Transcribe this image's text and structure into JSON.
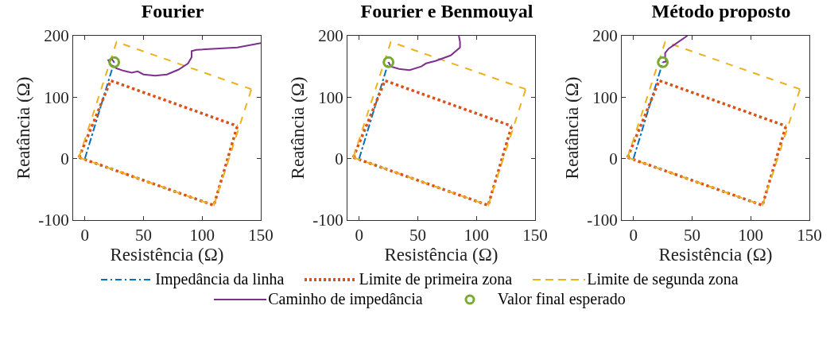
{
  "chart_data": [
    {
      "type": "line",
      "title": "Fourier",
      "xlabel": "Resistência (Ω)",
      "ylabel": "Reatância (Ω)",
      "xlim": [
        -10,
        150
      ],
      "xticks": [
        0,
        50,
        100,
        150
      ],
      "ylim": [
        -100,
        200
      ],
      "yticks": [
        -100,
        0,
        100,
        200
      ],
      "grid": false,
      "legend": "bottom",
      "series": [
        {
          "name": "Impedância da linha",
          "color": "#0072bd",
          "line_style": "dashdot",
          "x": [
            0,
            25
          ],
          "values": [
            0,
            157
          ]
        },
        {
          "name": "Limite de primeira zona",
          "color": "#d95319",
          "line_style": "dotted",
          "x": [
            -5,
            22,
            130,
            null,
            -5,
            110,
            130
          ],
          "values": [
            2,
            127,
            53,
            null,
            2,
            -76,
            53
          ]
        },
        {
          "name": "Limite de segunda zona",
          "color": "#edb120",
          "line_style": "dashed",
          "x": [
            -5,
            27,
            142,
            null,
            -5,
            110,
            142
          ],
          "values": [
            2,
            190,
            113,
            null,
            2,
            -76,
            113
          ]
        },
        {
          "name": "Caminho de impedância",
          "color": "#7e2f8e",
          "line_style": "solid",
          "x": [
            150,
            130,
            95,
            91,
            91,
            88,
            80,
            70,
            60,
            50,
            45,
            40,
            33,
            27,
            22,
            20,
            23,
            25
          ],
          "values": [
            188,
            181,
            177,
            175,
            165,
            155,
            145,
            137,
            135,
            137,
            142,
            140,
            143,
            147,
            153,
            160,
            162,
            157
          ]
        },
        {
          "name": "Valor final esperado",
          "type": "scatter",
          "marker": "circle",
          "color": "#77ac30",
          "x": [
            25
          ],
          "values": [
            157
          ]
        }
      ]
    },
    {
      "type": "line",
      "title": "Fourier e Benmouyal",
      "xlabel": "Resistência (Ω)",
      "ylabel": "Reatância (Ω)",
      "xlim": [
        -10,
        150
      ],
      "xticks": [
        0,
        50,
        100,
        150
      ],
      "ylim": [
        -100,
        200
      ],
      "yticks": [
        -100,
        0,
        100,
        200
      ],
      "grid": false,
      "series": [
        {
          "color": "#0072bd",
          "line_style": "dashdot",
          "x": [
            0,
            25
          ],
          "values": [
            0,
            157
          ]
        },
        {
          "color": "#d95319",
          "line_style": "dotted",
          "x": [
            -5,
            22,
            130,
            null,
            -5,
            110,
            130
          ],
          "values": [
            2,
            127,
            53,
            null,
            2,
            -76,
            53
          ]
        },
        {
          "color": "#edb120",
          "line_style": "dashed",
          "x": [
            -5,
            27,
            142,
            null,
            -5,
            110,
            142
          ],
          "values": [
            2,
            190,
            113,
            null,
            2,
            -76,
            113
          ]
        },
        {
          "color": "#7e2f8e",
          "line_style": "solid",
          "x": [
            85,
            86,
            86,
            78,
            65,
            57,
            53,
            43,
            34,
            27,
            25
          ],
          "values": [
            200,
            190,
            181,
            168,
            159,
            155,
            150,
            144,
            146,
            150,
            157
          ]
        },
        {
          "type": "scatter",
          "marker": "circle",
          "color": "#77ac30",
          "x": [
            25
          ],
          "values": [
            157
          ]
        }
      ]
    },
    {
      "type": "line",
      "title": "Método proposto",
      "xlabel": "Resistência (Ω)",
      "ylabel": "Reatância (Ω)",
      "xlim": [
        -10,
        150
      ],
      "xticks": [
        0,
        50,
        100,
        150
      ],
      "ylim": [
        -100,
        200
      ],
      "yticks": [
        -100,
        0,
        100,
        200
      ],
      "grid": false,
      "series": [
        {
          "color": "#0072bd",
          "line_style": "dashdot",
          "x": [
            0,
            25
          ],
          "values": [
            0,
            157
          ]
        },
        {
          "color": "#d95319",
          "line_style": "dotted",
          "x": [
            -5,
            22,
            130,
            null,
            -5,
            110,
            130
          ],
          "values": [
            2,
            127,
            53,
            null,
            2,
            -76,
            53
          ]
        },
        {
          "color": "#edb120",
          "line_style": "dashed",
          "x": [
            -5,
            27,
            142,
            null,
            -5,
            110,
            142
          ],
          "values": [
            2,
            190,
            113,
            null,
            2,
            -76,
            113
          ]
        },
        {
          "color": "#7e2f8e",
          "line_style": "solid",
          "x": [
            46,
            36,
            30,
            27,
            27,
            28,
            25
          ],
          "values": [
            200,
            187,
            179,
            172,
            165,
            158,
            157
          ]
        },
        {
          "type": "scatter",
          "marker": "circle",
          "color": "#77ac30",
          "x": [
            25
          ],
          "values": [
            157
          ]
        }
      ]
    }
  ]
}
